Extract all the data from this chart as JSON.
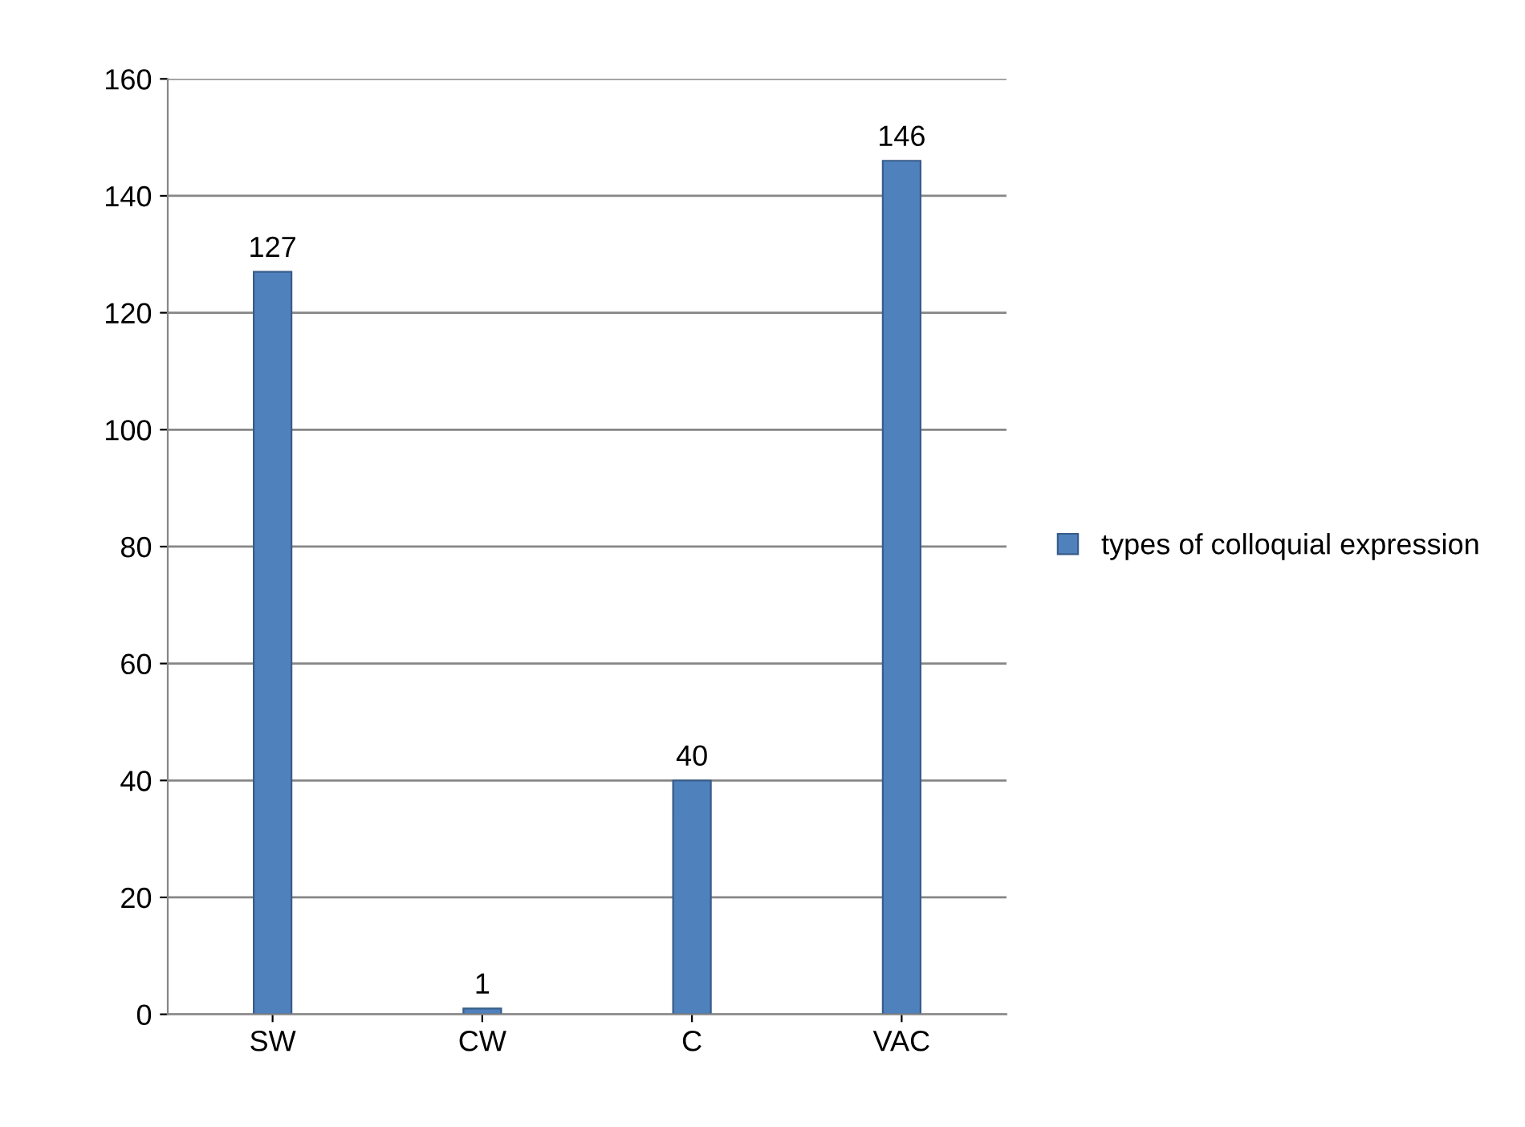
{
  "chart_data": {
    "type": "bar",
    "categories": [
      "SW",
      "CW",
      "C",
      "VAC"
    ],
    "series": [
      {
        "name": "types of colloquial expression",
        "color": "#4f81bd",
        "values": [
          127,
          1,
          40,
          146
        ]
      }
    ],
    "ylim": [
      0,
      160
    ],
    "yticks": [
      0,
      20,
      40,
      60,
      80,
      100,
      120,
      140,
      160
    ],
    "grid": "y",
    "legend": "right",
    "data_labels": true
  }
}
